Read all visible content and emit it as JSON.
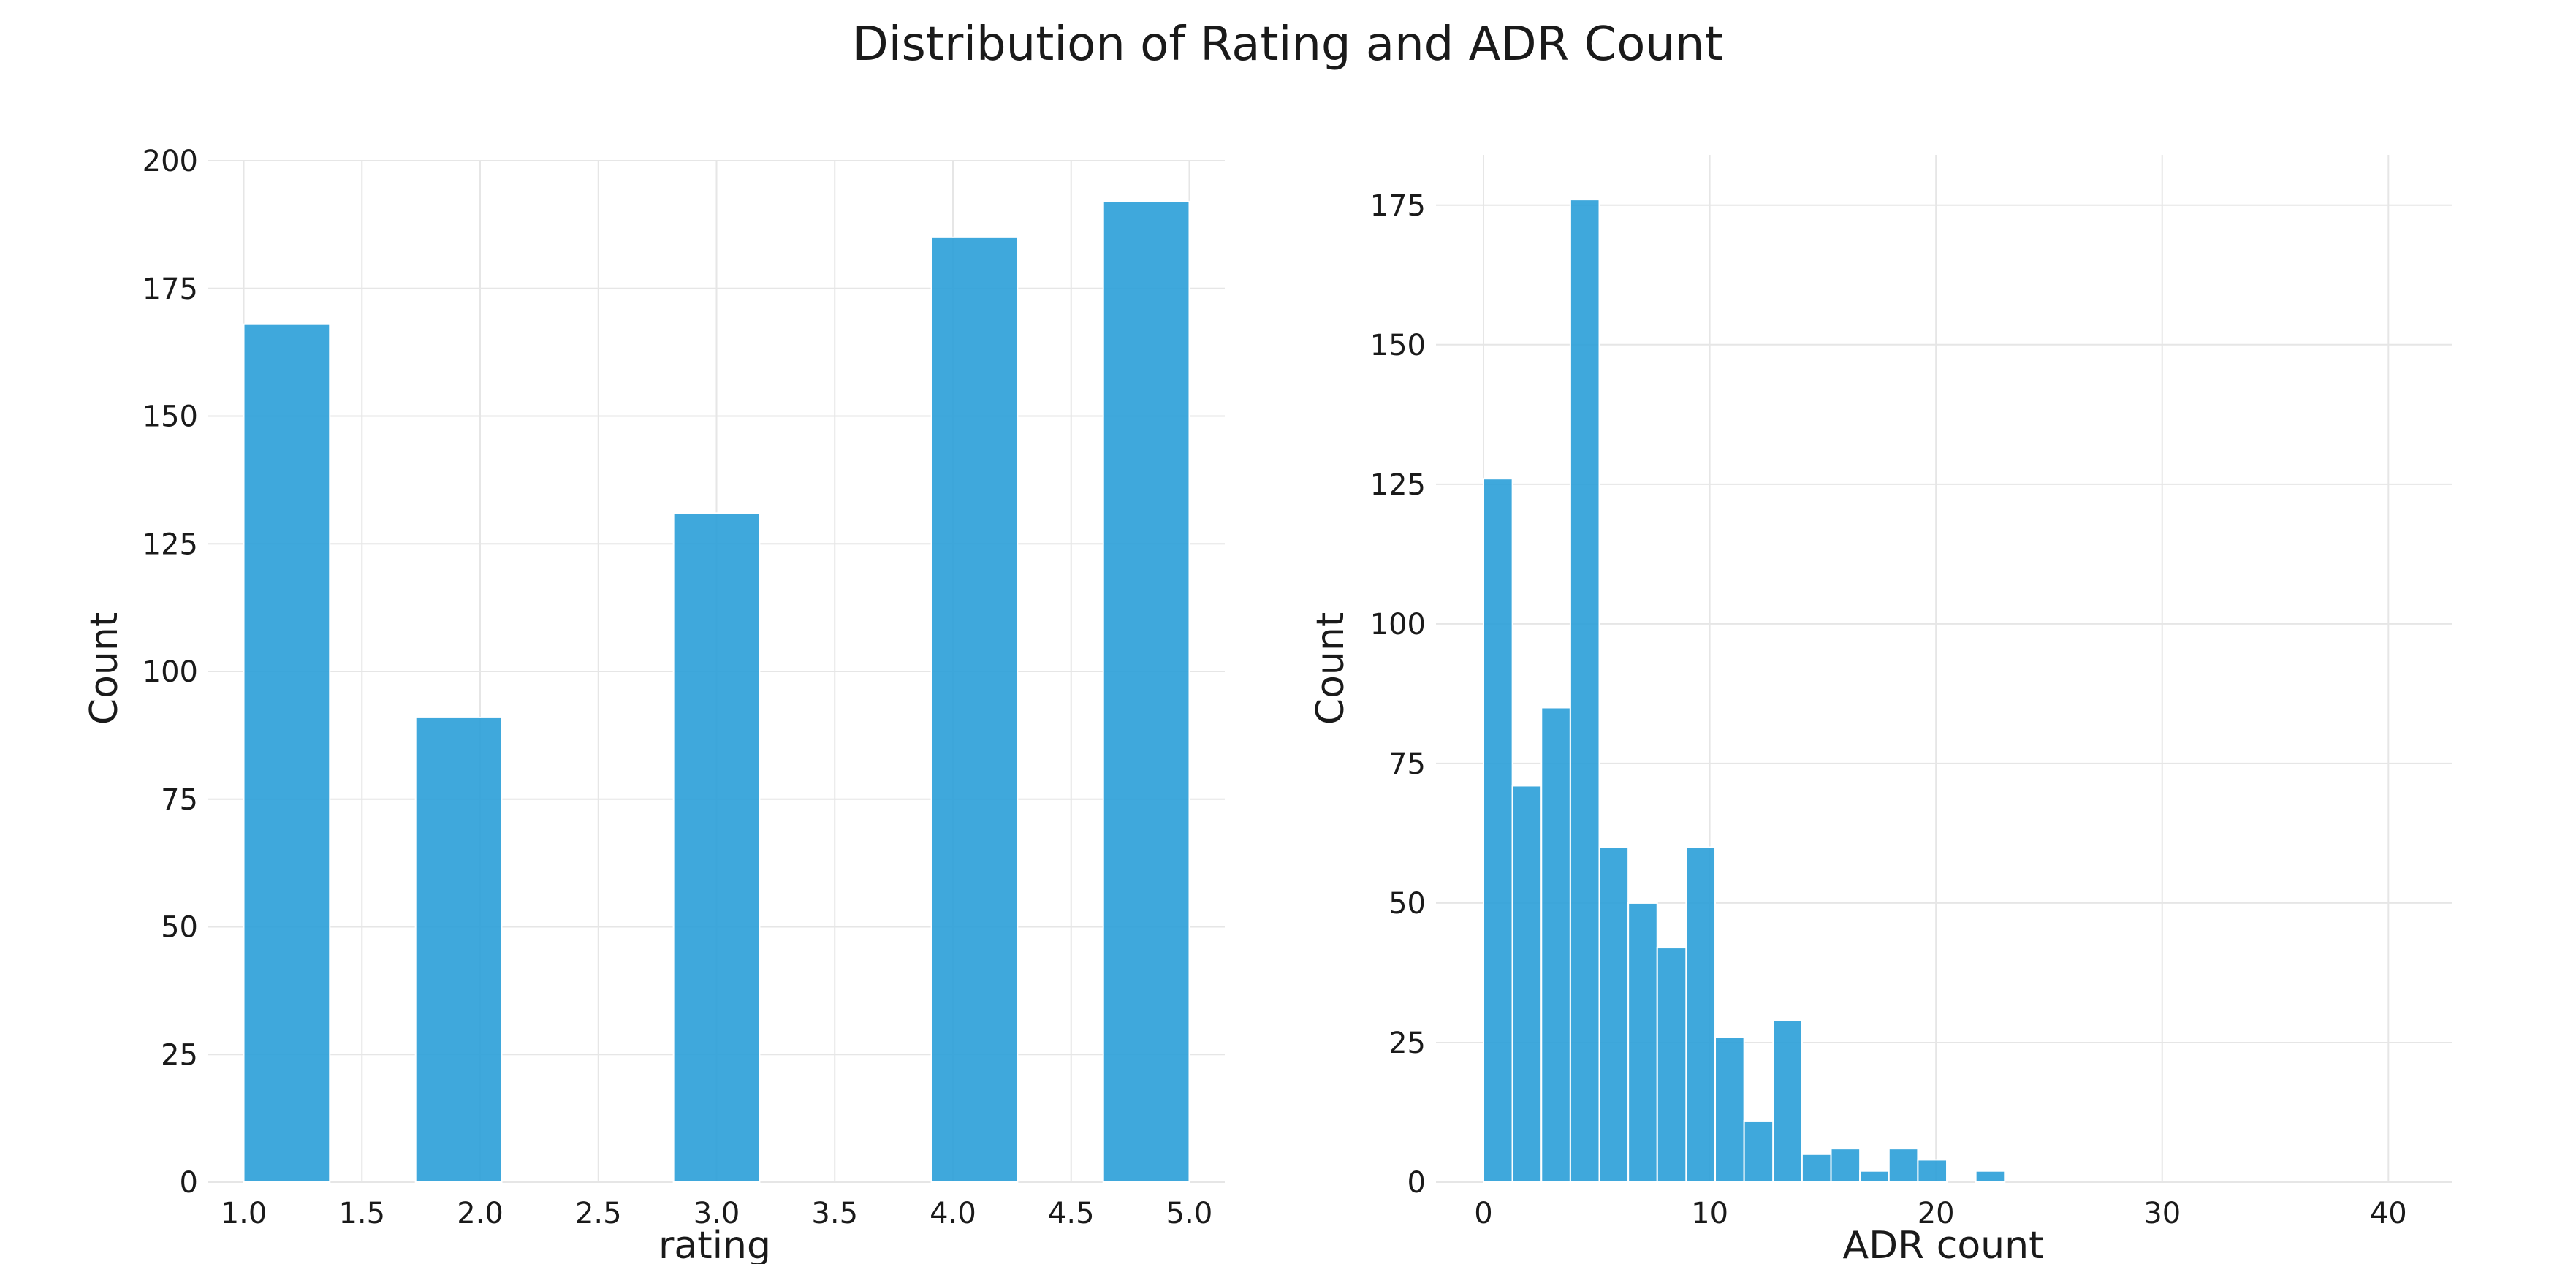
{
  "figure": {
    "title": "Distribution of Rating and ADR Count"
  },
  "chart_data": [
    {
      "type": "bar",
      "title": "",
      "xlabel": "rating",
      "ylabel": "Count",
      "xlim": [
        0.85,
        5.15
      ],
      "ylim": [
        0,
        200
      ],
      "xticks": [
        1.0,
        1.5,
        2.0,
        2.5,
        3.0,
        3.5,
        4.0,
        4.5,
        5.0
      ],
      "xtick_labels": [
        "1.0",
        "1.5",
        "2.0",
        "2.5",
        "3.0",
        "3.5",
        "4.0",
        "4.5",
        "5.0"
      ],
      "yticks": [
        0,
        25,
        50,
        75,
        100,
        125,
        150,
        175,
        200
      ],
      "ytick_labels": [
        "0",
        "25",
        "50",
        "75",
        "100",
        "125",
        "150",
        "175",
        "200"
      ],
      "grid": true,
      "bins": [
        {
          "x0": 1.0,
          "x1": 1.364,
          "count": 168
        },
        {
          "x0": 1.727,
          "x1": 2.091,
          "count": 91
        },
        {
          "x0": 2.818,
          "x1": 3.182,
          "count": 131
        },
        {
          "x0": 3.909,
          "x1": 4.273,
          "count": 185
        },
        {
          "x0": 4.636,
          "x1": 5.0,
          "count": 192
        }
      ]
    },
    {
      "type": "bar",
      "title": "",
      "xlabel": "ADR count",
      "ylabel": "Count",
      "xlim": [
        -2.1,
        42.8
      ],
      "ylim": [
        0,
        184
      ],
      "xticks": [
        0,
        10,
        20,
        30,
        40
      ],
      "xtick_labels": [
        "0",
        "10",
        "20",
        "30",
        "40"
      ],
      "yticks": [
        0,
        25,
        50,
        75,
        100,
        125,
        150,
        175
      ],
      "ytick_labels": [
        "0",
        "25",
        "50",
        "75",
        "100",
        "125",
        "150",
        "175"
      ],
      "grid": true,
      "bin_start": 0,
      "bin_width": 1.28,
      "counts": [
        126,
        71,
        85,
        176,
        60,
        50,
        42,
        60,
        26,
        11,
        29,
        5,
        6,
        2,
        6,
        4,
        0,
        2,
        0,
        0,
        0,
        0,
        0,
        0,
        0,
        0,
        0,
        0,
        0,
        0,
        0,
        0
      ]
    }
  ]
}
